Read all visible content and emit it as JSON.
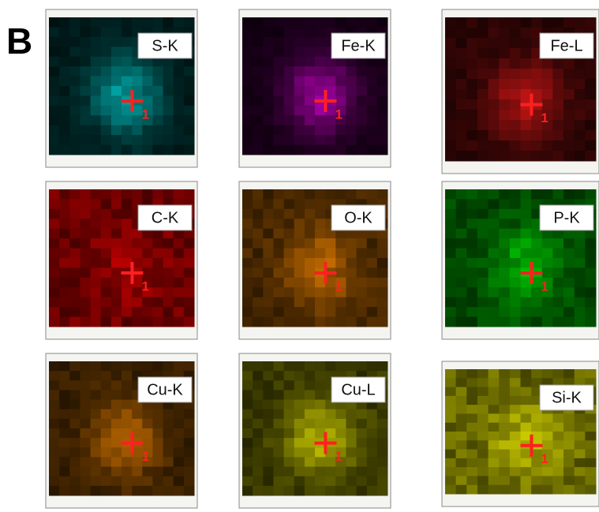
{
  "panel_label": "B",
  "maps": [
    {
      "label": "S-K",
      "marker": "1",
      "color": "#00e6e6"
    },
    {
      "label": "Fe-K",
      "marker": "1",
      "color": "#e600e6"
    },
    {
      "label": "Fe-L",
      "marker": "1",
      "color": "#ff1a1a"
    },
    {
      "label": "C-K",
      "marker": "1",
      "color": "#e60000"
    },
    {
      "label": "O-K",
      "marker": "1",
      "color": "#ff8c00"
    },
    {
      "label": "P-K",
      "marker": "1",
      "color": "#00e600"
    },
    {
      "label": "Cu-K",
      "marker": "1",
      "color": "#ff8c00"
    },
    {
      "label": "Cu-L",
      "marker": "1",
      "color": "#f0f000"
    },
    {
      "label": "Si-K",
      "marker": "1",
      "color": "#f0f000"
    }
  ]
}
